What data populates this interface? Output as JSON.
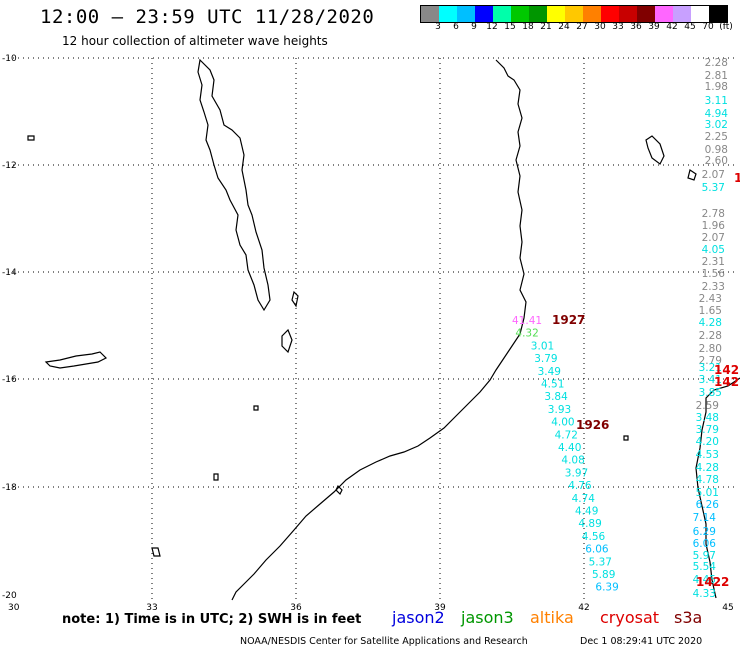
{
  "header": {
    "title": "12:00 – 23:59 UTC 11/28/2020",
    "subtitle": "12 hour collection of altimeter wave heights"
  },
  "legend": {
    "colors": [
      "#888888",
      "#00ffff",
      "#00bfff",
      "#0000ff",
      "#00ffaa",
      "#00c800",
      "#009600",
      "#ffff00",
      "#ffc800",
      "#ff8000",
      "#ff0000",
      "#c80000",
      "#800000",
      "#ff66ff",
      "#c8a0ff",
      "#ffffff",
      "#000000"
    ],
    "labels": [
      "3",
      "6",
      "9",
      "12",
      "15",
      "18",
      "21",
      "24",
      "27",
      "30",
      "33",
      "36",
      "39",
      "42",
      "45",
      "70",
      "(ft)"
    ]
  },
  "axes": {
    "lon_labels": [
      "30",
      "33",
      "36",
      "39",
      "42",
      "45"
    ],
    "lat_labels": [
      "-10",
      "-12",
      "-14",
      "-16",
      "-18",
      "-20"
    ]
  },
  "tracks": {
    "right_column": [
      {
        "v": "2.28",
        "c": "#888888"
      },
      {
        "v": "2.81",
        "c": "#888888"
      },
      {
        "v": "1.98",
        "c": "#888888"
      },
      {
        "v": "3.11",
        "c": "#00e0e0"
      },
      {
        "v": "4.94",
        "c": "#00e0e0"
      },
      {
        "v": "3.02",
        "c": "#00e0e0"
      },
      {
        "v": "2.25",
        "c": "#888888"
      },
      {
        "v": "0.98",
        "c": "#888888"
      },
      {
        "v": "2.60",
        "c": "#888888"
      },
      {
        "v": "2.07",
        "c": "#888888"
      },
      {
        "v": "5.37",
        "c": "#00e0e0"
      },
      {
        "v": "2.78",
        "c": "#888888"
      },
      {
        "v": "1.96",
        "c": "#888888"
      },
      {
        "v": "2.07",
        "c": "#888888"
      },
      {
        "v": "4.05",
        "c": "#00e0e0"
      },
      {
        "v": "2.31",
        "c": "#888888"
      },
      {
        "v": "1.56",
        "c": "#888888"
      },
      {
        "v": "2.33",
        "c": "#888888"
      },
      {
        "v": "2.43",
        "c": "#888888"
      },
      {
        "v": "1.65",
        "c": "#888888"
      },
      {
        "v": "4.28",
        "c": "#00e0e0"
      },
      {
        "v": "2.28",
        "c": "#888888"
      },
      {
        "v": "2.80",
        "c": "#888888"
      },
      {
        "v": "2.79",
        "c": "#888888"
      },
      {
        "v": "3.21",
        "c": "#00e0e0"
      },
      {
        "v": "3.41",
        "c": "#00e0e0"
      },
      {
        "v": "3.85",
        "c": "#00e0e0"
      },
      {
        "v": "2.59",
        "c": "#888888"
      },
      {
        "v": "3.48",
        "c": "#00e0e0"
      },
      {
        "v": "3.79",
        "c": "#00e0e0"
      },
      {
        "v": "4.20",
        "c": "#00e0e0"
      },
      {
        "v": "4.53",
        "c": "#00e0e0"
      },
      {
        "v": "4.28",
        "c": "#00e0e0"
      },
      {
        "v": "4.78",
        "c": "#00e0e0"
      },
      {
        "v": "5.01",
        "c": "#00e0e0"
      },
      {
        "v": "6.26",
        "c": "#00bfff"
      },
      {
        "v": "7.14",
        "c": "#00bfff"
      },
      {
        "v": "6.29",
        "c": "#00bfff"
      },
      {
        "v": "6.06",
        "c": "#00bfff"
      },
      {
        "v": "5.97",
        "c": "#00e0e0"
      },
      {
        "v": "5.54",
        "c": "#00e0e0"
      },
      {
        "v": "4.45",
        "c": "#00e0e0"
      },
      {
        "v": "4.33",
        "c": "#00e0e0"
      }
    ],
    "diagonal": [
      {
        "v": "41.41",
        "c": "#ff66ff"
      },
      {
        "v": "4.32",
        "c": "#55dd55"
      },
      {
        "v": "3.01",
        "c": "#00e0e0"
      },
      {
        "v": "3.79",
        "c": "#00e0e0"
      },
      {
        "v": "3.49",
        "c": "#00e0e0"
      },
      {
        "v": "4.51",
        "c": "#00e0e0"
      },
      {
        "v": "3.84",
        "c": "#00e0e0"
      },
      {
        "v": "3.93",
        "c": "#00e0e0"
      },
      {
        "v": "4.00",
        "c": "#00e0e0"
      },
      {
        "v": "4.72",
        "c": "#00e0e0"
      },
      {
        "v": "4.40",
        "c": "#00e0e0"
      },
      {
        "v": "4.08",
        "c": "#00e0e0"
      },
      {
        "v": "3.97",
        "c": "#00e0e0"
      },
      {
        "v": "4.76",
        "c": "#00e0e0"
      },
      {
        "v": "4.74",
        "c": "#00e0e0"
      },
      {
        "v": "4.49",
        "c": "#00e0e0"
      },
      {
        "v": "4.89",
        "c": "#00e0e0"
      },
      {
        "v": "4.56",
        "c": "#00e0e0"
      },
      {
        "v": "6.06",
        "c": "#00bfff"
      },
      {
        "v": "5.37",
        "c": "#00e0e0"
      },
      {
        "v": "5.89",
        "c": "#00e0e0"
      },
      {
        "v": "6.39",
        "c": "#00bfff"
      }
    ],
    "pass_labels": [
      {
        "v": "1927",
        "c": "#800000"
      },
      {
        "v": "1926",
        "c": "#800000"
      },
      {
        "v": "142",
        "c": "#dd0000"
      },
      {
        "v": "142",
        "c": "#dd0000"
      },
      {
        "v": "1422",
        "c": "#dd0000"
      },
      {
        "v": "1",
        "c": "#dd0000"
      }
    ]
  },
  "footer": {
    "note": "note: 1) Time is in UTC; 2) SWH is in feet",
    "satellites": [
      {
        "name": "jason2",
        "color": "#0000dd"
      },
      {
        "name": "jason3",
        "color": "#009600"
      },
      {
        "name": "altika",
        "color": "#ff8000"
      },
      {
        "name": "cryosat",
        "color": "#dd0000"
      },
      {
        "name": "s3a",
        "color": "#800000"
      }
    ],
    "credit": "NOAA/NESDIS Center for Satellite Applications and Research",
    "timestamp": "Dec  1 08:29:41 UTC 2020"
  }
}
